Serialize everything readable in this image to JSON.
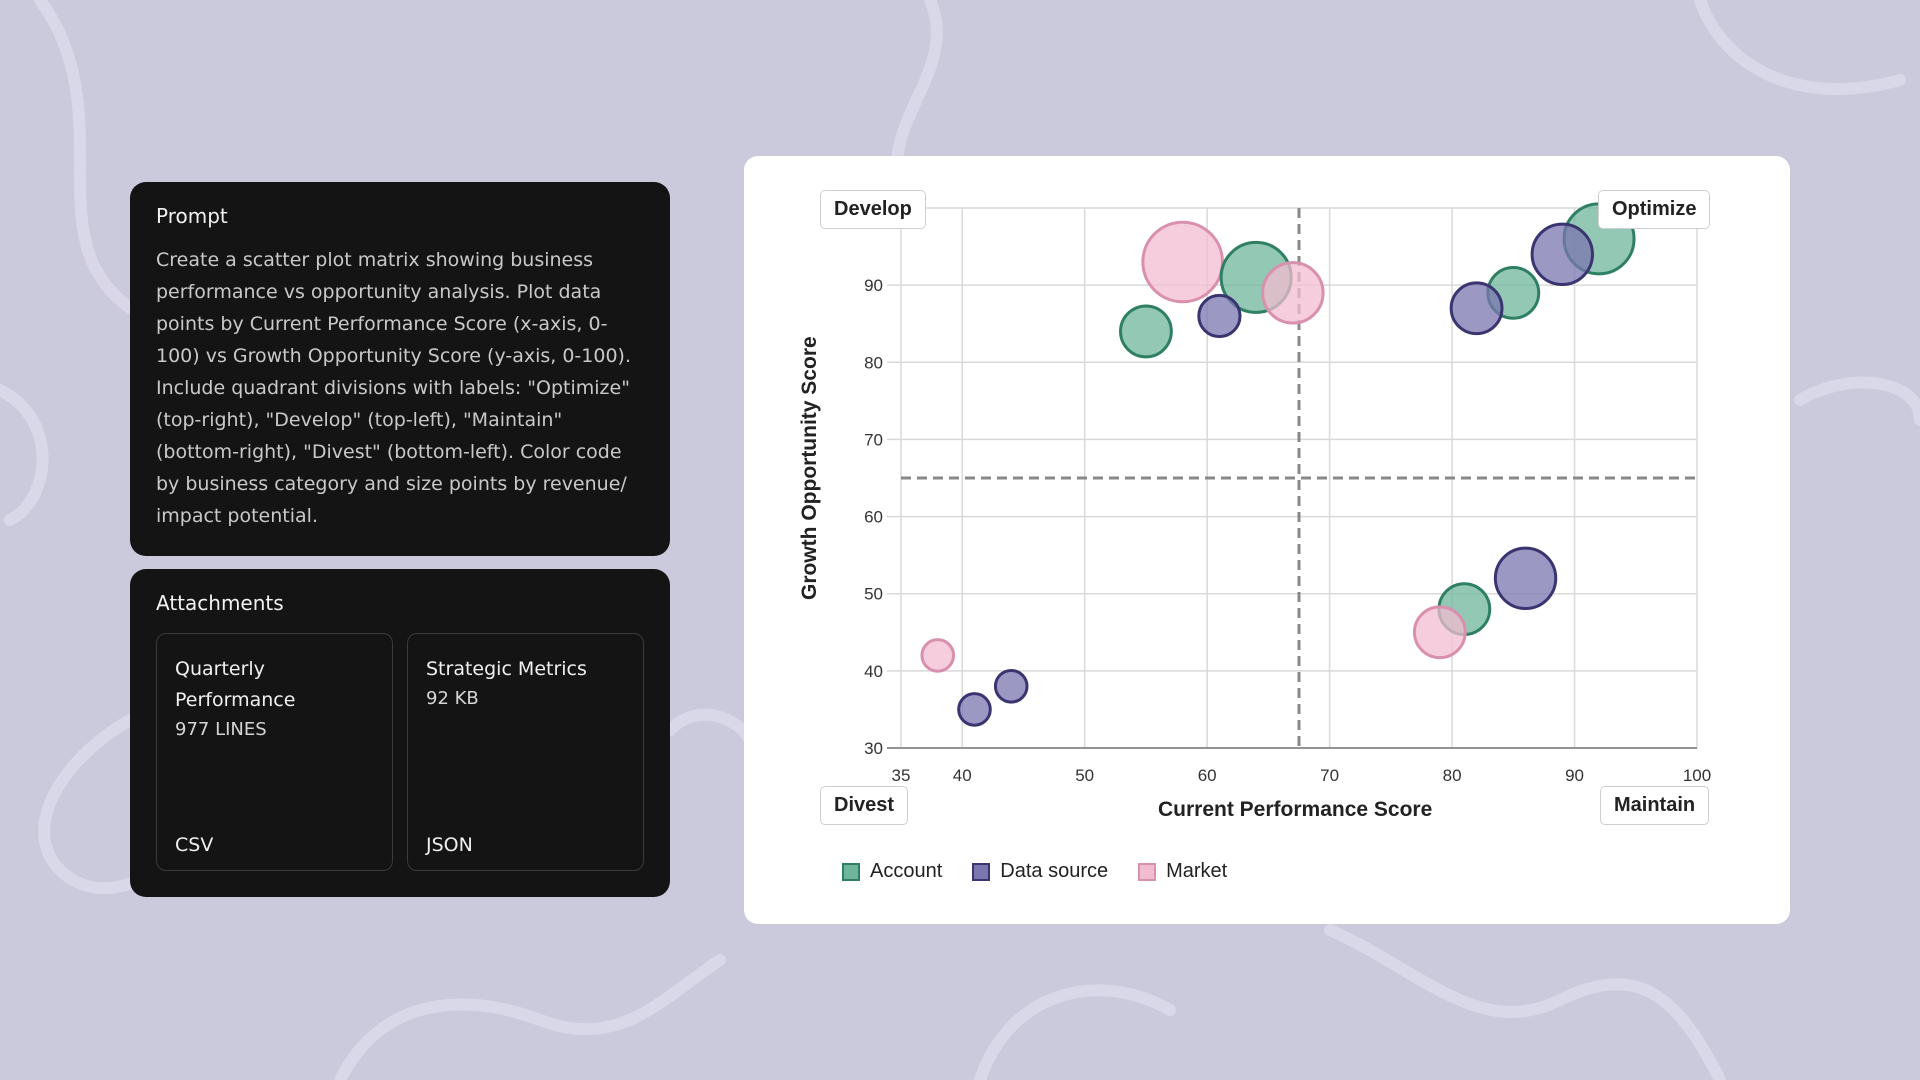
{
  "prompt": {
    "title": "Prompt",
    "text": "Create a scatter plot matrix showing business performance vs opportunity analysis. Plot data points by Current Performance Score (x-axis, 0-100) vs Growth Opportunity Score (y-axis, 0-100). Include quadrant divisions with labels: \"Optimize\" (top-right), \"Develop\" (top-left), \"Maintain\" (bottom-right), \"Divest\" (bottom-left). Color code by business category and size points by revenue/ impact potential."
  },
  "attachments": {
    "title": "Attachments",
    "files": [
      {
        "name": "Quarterly Performance",
        "size": "977 LINES",
        "type": "CSV"
      },
      {
        "name": "Strategic Metrics",
        "size": "92 KB",
        "type": "JSON"
      }
    ]
  },
  "chart_data": {
    "type": "scatter",
    "title": "",
    "xlabel": "Current Performance Score",
    "ylabel": "Growth Opportunity Score",
    "xlim": [
      35,
      100
    ],
    "ylim": [
      30,
      100
    ],
    "x_ticks": [
      35,
      40,
      50,
      60,
      70,
      80,
      90,
      100
    ],
    "y_ticks": [
      30,
      40,
      50,
      60,
      70,
      80,
      90
    ],
    "grid": true,
    "legend_position": "bottom-left",
    "quadrant_divider": {
      "x": 67.5,
      "y": 65
    },
    "quadrant_labels": {
      "top_left": "Develop",
      "top_right": "Optimize",
      "bottom_left": "Divest",
      "bottom_right": "Maintain"
    },
    "series": [
      {
        "name": "Account",
        "fill": "#6fb59c",
        "stroke": "#2f7f63",
        "points": [
          {
            "x": 55,
            "y": 84,
            "size": 3
          },
          {
            "x": 64,
            "y": 91,
            "size": 5
          },
          {
            "x": 81,
            "y": 48,
            "size": 3
          },
          {
            "x": 85,
            "y": 89,
            "size": 3
          },
          {
            "x": 92,
            "y": 96,
            "size": 5
          }
        ]
      },
      {
        "name": "Data source",
        "fill": "#7b76b0",
        "stroke": "#3a3470",
        "points": [
          {
            "x": 41,
            "y": 35,
            "size": 1
          },
          {
            "x": 44,
            "y": 38,
            "size": 1
          },
          {
            "x": 61,
            "y": 86,
            "size": 2
          },
          {
            "x": 82,
            "y": 87,
            "size": 3
          },
          {
            "x": 86,
            "y": 52,
            "size": 4
          },
          {
            "x": 89,
            "y": 94,
            "size": 4
          }
        ]
      },
      {
        "name": "Market",
        "fill": "#f2bcd0",
        "stroke": "#d98fae",
        "points": [
          {
            "x": 38,
            "y": 42,
            "size": 1
          },
          {
            "x": 58,
            "y": 93,
            "size": 6
          },
          {
            "x": 67,
            "y": 89,
            "size": 4
          },
          {
            "x": 79,
            "y": 45,
            "size": 3
          }
        ]
      }
    ]
  }
}
